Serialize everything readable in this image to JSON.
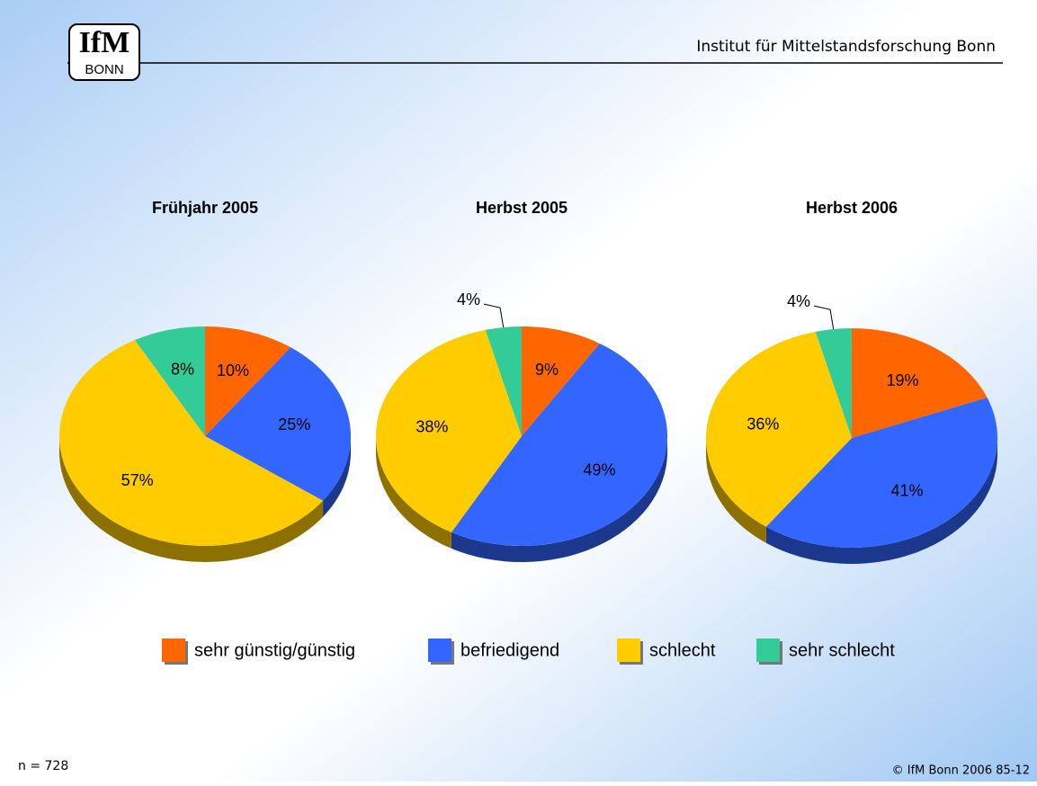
{
  "header": {
    "logo": "IfM",
    "logo_sub": "BONN",
    "institute": "Institut für Mittelstandsforschung Bonn"
  },
  "legend": {
    "categories": [
      "sehr günstig/günstig",
      "befriedigend",
      "schlecht",
      "sehr schlecht"
    ],
    "colors": [
      "#ff6600",
      "#3366ff",
      "#ffcc00",
      "#33cc99"
    ]
  },
  "chart_data": [
    {
      "type": "pie",
      "title": "Frühjahr 2005",
      "values": [
        10,
        25,
        57,
        8
      ],
      "value_labels": [
        "10%",
        "25%",
        "57%",
        "8%"
      ]
    },
    {
      "type": "pie",
      "title": "Herbst 2005",
      "values": [
        9,
        49,
        38,
        4
      ],
      "value_labels": [
        "9%",
        "49%",
        "38%",
        "4%"
      ]
    },
    {
      "type": "pie",
      "title": "Herbst 2006",
      "values": [
        19,
        41,
        36,
        4
      ],
      "value_labels": [
        "19%",
        "41%",
        "36%",
        "4%"
      ]
    }
  ],
  "footer": {
    "n": "n = 728",
    "copyright": "© IfM Bonn 2006  85-12"
  }
}
